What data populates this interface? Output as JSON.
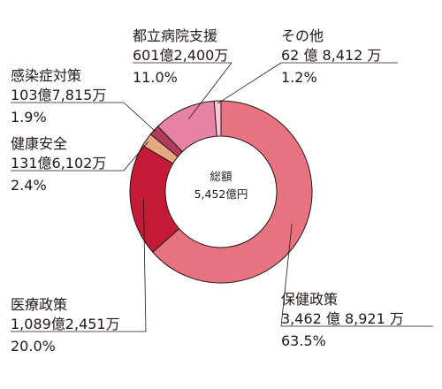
{
  "chart_data": {
    "type": "pie",
    "variant": "donut",
    "center_label": {
      "title": "総額",
      "value": "5,452億円"
    },
    "slices": [
      {
        "name": "保健政策",
        "amount": "3,462 億 8,921 万",
        "percent": "63.5%",
        "value": 63.5,
        "color": "#e6737f"
      },
      {
        "name": "医療政策",
        "amount": "1,089億2,451万",
        "percent": "20.0%",
        "value": 20.0,
        "color": "#c41a35"
      },
      {
        "name": "健康安全",
        "amount": "131億6,102万",
        "percent": "2.4%",
        "value": 2.4,
        "color": "#e7a882"
      },
      {
        "name": "感染症対策",
        "amount": "103億7,815万",
        "percent": "1.9%",
        "value": 1.9,
        "color": "#b23a5c"
      },
      {
        "name": "都立病院支援",
        "amount": "601億2,400万",
        "percent": "11.0%",
        "value": 11.0,
        "color": "#e682a5"
      },
      {
        "name": "その他",
        "amount": "62 億 8,412 万",
        "percent": "1.2%",
        "value": 1.2,
        "color": "#f4c9d6"
      }
    ],
    "start_angle_deg": 0,
    "direction": "clockwise"
  }
}
